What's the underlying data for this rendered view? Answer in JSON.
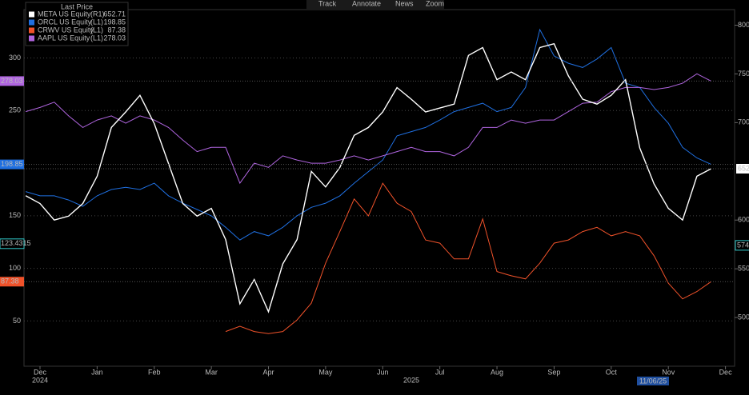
{
  "toolbar": [
    "Track",
    "Annotate",
    "News",
    "Zoom"
  ],
  "chart_data": {
    "type": "line",
    "legend_title": "Last Price",
    "x": [
      -0.25,
      0,
      0.25,
      0.5,
      0.75,
      1,
      1.25,
      1.5,
      1.75,
      2,
      2.25,
      2.5,
      2.75,
      3,
      3.25,
      3.5,
      3.75,
      4,
      4.25,
      4.5,
      4.75,
      5,
      5.25,
      5.5,
      5.75,
      6,
      6.25,
      6.5,
      6.75,
      7,
      7.25,
      7.5,
      7.75,
      8,
      8.25,
      8.5,
      8.75,
      9,
      9.25,
      9.5,
      9.75,
      10,
      10.25,
      10.5,
      10.75,
      11,
      11.25,
      11.5,
      11.75
    ],
    "xlim": [
      -0.28,
      12.16
    ],
    "xticks": [
      {
        "value": 0,
        "label": "Dec"
      },
      {
        "value": 1,
        "label": "Jan"
      },
      {
        "value": 2,
        "label": "Feb"
      },
      {
        "value": 3,
        "label": "Mar"
      },
      {
        "value": 4,
        "label": "Apr"
      },
      {
        "value": 5,
        "label": "May"
      },
      {
        "value": 6,
        "label": "Jun"
      },
      {
        "value": 7,
        "label": "Jul"
      },
      {
        "value": 8,
        "label": "Aug"
      },
      {
        "value": 9,
        "label": "Sep"
      },
      {
        "value": 10,
        "label": "Oct"
      },
      {
        "value": 11,
        "label": "Nov"
      },
      {
        "value": 12,
        "label": "Dec"
      }
    ],
    "years": [
      "2024",
      "2025"
    ],
    "ylim": [
      7,
      346
    ],
    "yticks": [
      50,
      100,
      150,
      250,
      300
    ],
    "y2lim": [
      450,
      816
    ],
    "y2ticks": [
      500,
      550,
      600,
      700,
      750,
      800
    ],
    "grid": true,
    "crosshair": {
      "date": "11/06/25",
      "y": 123.4315,
      "y2": {
        "value": 574,
        "label": "574.0"
      }
    },
    "series": [
      {
        "name": "META US Equity",
        "axis_label": "(R1)",
        "axis": "y2",
        "color": "#ffffff",
        "last_price": 652.71,
        "values": [
          625,
          617,
          600,
          604,
          617,
          645,
          695,
          711,
          728,
          699,
          658,
          617,
          604,
          612,
          580,
          514,
          539,
          506,
          555,
          580,
          650,
          634,
          654,
          687,
          695,
          711,
          736,
          724,
          711,
          715,
          719,
          769,
          777,
          744,
          752,
          744,
          777,
          781,
          748,
          724,
          719,
          728,
          744,
          674,
          637,
          612,
          600,
          645,
          652.71
        ]
      },
      {
        "name": "ORCL US Equity",
        "axis_label": "(L1)",
        "axis": "y",
        "color": "#1f6fe0",
        "last_price": 198.85,
        "values": [
          173,
          169,
          169,
          165,
          159,
          169,
          175,
          177,
          175,
          181,
          169,
          162,
          156,
          150,
          139,
          127,
          135,
          131,
          139,
          150,
          158,
          162,
          169,
          181,
          192,
          203,
          226,
          230,
          234,
          241,
          249,
          253,
          257,
          249,
          253,
          272,
          327,
          302,
          295,
          291,
          299,
          310,
          276,
          272,
          253,
          238,
          215,
          205,
          198.85
        ]
      },
      {
        "name": "CRWV US Equity",
        "axis_label": "(L1)",
        "axis": "y",
        "color": "#f0522a",
        "last_price": 87.38,
        "values": [
          null,
          null,
          null,
          null,
          null,
          null,
          null,
          null,
          null,
          null,
          null,
          null,
          null,
          null,
          40,
          45,
          40,
          38,
          40,
          51,
          67,
          105,
          135,
          166,
          150,
          181,
          162,
          154,
          127,
          124,
          109,
          109,
          147,
          97,
          93,
          90,
          105,
          124,
          127,
          135,
          139,
          131,
          135,
          131,
          112,
          86,
          71,
          78,
          87.38
        ]
      },
      {
        "name": "AAPL US Equity",
        "axis_label": "(L1)",
        "axis": "y",
        "color": "#b065e0",
        "last_price": 278.03,
        "values": [
          249,
          253,
          258,
          245,
          234,
          241,
          245,
          238,
          245,
          241,
          234,
          222,
          211,
          215,
          215,
          181,
          200,
          196,
          207,
          203,
          200,
          200,
          203,
          207,
          203,
          207,
          211,
          215,
          211,
          211,
          207,
          215,
          234,
          234,
          241,
          238,
          241,
          241,
          249,
          257,
          258,
          268,
          272,
          272,
          270,
          272,
          276,
          285,
          278.03
        ]
      }
    ]
  }
}
